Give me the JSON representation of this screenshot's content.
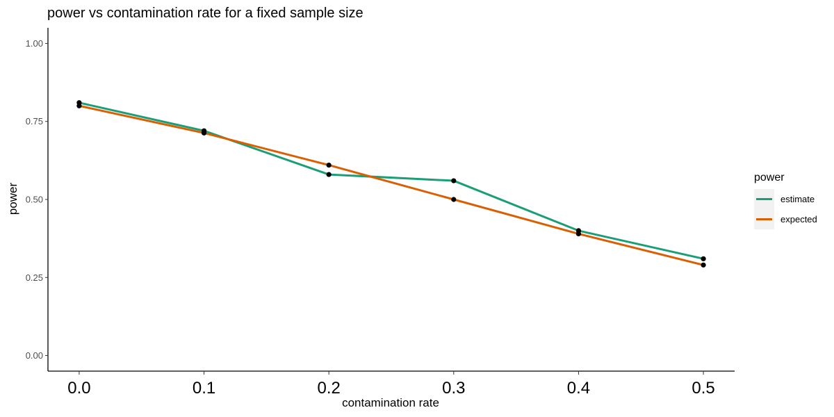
{
  "chart_data": {
    "type": "line",
    "title": "power vs contamination rate for a fixed sample size",
    "xlabel": "contamination rate",
    "ylabel": "power",
    "x": [
      0.0,
      0.1,
      0.2,
      0.3,
      0.4,
      0.5
    ],
    "x_tick_labels": [
      "0.0",
      "0.1",
      "0.2",
      "0.3",
      "0.4",
      "0.5"
    ],
    "y_ticks": [
      0.0,
      0.25,
      0.5,
      0.75,
      1.0
    ],
    "y_tick_labels": [
      "0.00",
      "0.25",
      "0.50",
      "0.75",
      "1.00"
    ],
    "xlim": [
      -0.025,
      0.525
    ],
    "ylim": [
      -0.05,
      1.05
    ],
    "grid": false,
    "legend": {
      "title": "power",
      "position": "right"
    },
    "series": [
      {
        "name": "estimate",
        "color": "#1b9e77",
        "values": [
          0.81,
          0.72,
          0.58,
          0.56,
          0.4,
          0.31
        ]
      },
      {
        "name": "expected",
        "color": "#d95f02",
        "values": [
          0.8,
          0.713,
          0.61,
          0.5,
          0.39,
          0.29
        ]
      }
    ],
    "point_color": "#000000"
  }
}
